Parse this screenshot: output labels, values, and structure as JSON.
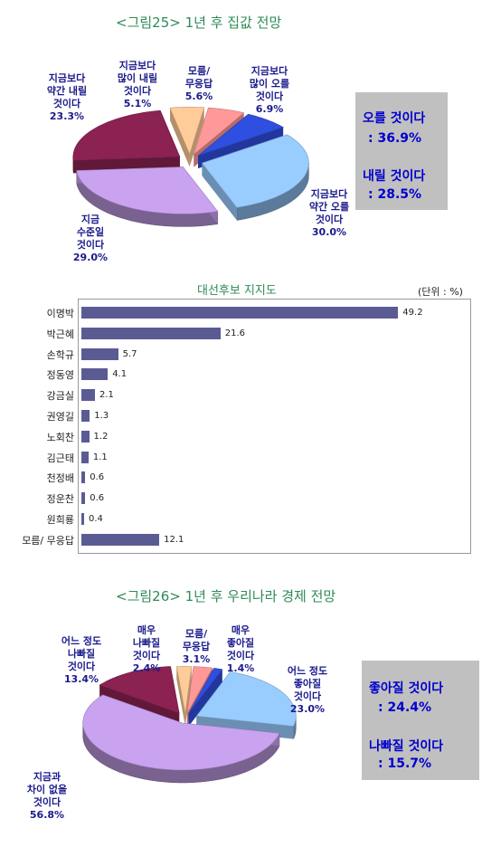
{
  "chart_data": [
    {
      "type": "pie",
      "title": "<그림25> 1년 후 집값 전망",
      "slices": [
        {
          "label": "지금보다 많이 오를 것이다",
          "value": 6.9,
          "color": "#2f4fe0"
        },
        {
          "label": "지금보다 약간 오를 것이다",
          "value": 30.0,
          "color": "#99ccff"
        },
        {
          "label": "지금 수준일 것이다",
          "value": 29.0,
          "color": "#c9a2f0"
        },
        {
          "label": "지금보다 약간 내릴 것이다",
          "value": 23.3,
          "color": "#8b2252"
        },
        {
          "label": "지금보다 많이 내릴 것이다",
          "value": 5.1,
          "color": "#ffcc99"
        },
        {
          "label": "모름/무응답",
          "value": 5.6,
          "color": "#ff9999"
        }
      ]
    },
    {
      "type": "bar",
      "title": "대선후보 지지도",
      "unit": "(단위 : %)",
      "categories": [
        "이명박",
        "박근혜",
        "손학규",
        "정동영",
        "강금실",
        "권영길",
        "노회찬",
        "김근태",
        "천정배",
        "정운찬",
        "원희룡",
        "모름/ 무응답"
      ],
      "values": [
        49.2,
        21.6,
        5.7,
        4.1,
        2.1,
        1.3,
        1.2,
        1.1,
        0.6,
        0.6,
        0.4,
        12.1
      ],
      "xlim": [
        0,
        50
      ]
    },
    {
      "type": "pie",
      "title": "<그림26> 1년 후 우리나라 경제 전망",
      "slices": [
        {
          "label": "매우 나빠질 것이다",
          "value": 2.4,
          "color": "#ffcc99"
        },
        {
          "label": "모름/무응답",
          "value": 3.1,
          "color": "#ff9999"
        },
        {
          "label": "매우 좋아질 것이다",
          "value": 1.4,
          "color": "#2f4fe0"
        },
        {
          "label": "어느 정도 좋아질 것이다",
          "value": 23.0,
          "color": "#99ccff"
        },
        {
          "label": "지금과 차이 없을 것이다",
          "value": 56.8,
          "color": "#c9a2f0"
        },
        {
          "label": "어느 정도 나빠질 것이다",
          "value": 13.4,
          "color": "#8b2252"
        }
      ]
    }
  ],
  "labels1": {
    "many_down": "지금보다\n많이 내릴\n것이다\n5.1%",
    "noresp": "모름/\n무응답\n5.6%",
    "many_up": "지금보다\n많이 오를\n것이다\n6.9%",
    "bit_down": "지금보다\n약간 내릴\n것이다\n23.3%",
    "bit_up": "지금보다\n약간 오를\n것이다\n30.0%",
    "same": "지금\n수준일\n것이다\n29.0%"
  },
  "summary1": {
    "line1": "오를 것이다",
    "line2": ":  36.9%",
    "line3": "내릴 것이다",
    "line4": ":  28.5%"
  },
  "labels2": {
    "some_bad": "어느 정도\n나빠질\n것이다\n13.4%",
    "very_bad": "매우\n나빠질\n것이다\n2.4%",
    "noresp": "모름/\n무응답\n3.1%",
    "very_good": "매우\n좋아질\n것이다\n1.4%",
    "some_good": "어느 정도\n좋아질\n것이다\n23.0%",
    "same": "지금과\n차이 없을\n것이다\n56.8%"
  },
  "summary2": {
    "line1": "좋아질 것이다",
    "line2": ":  24.4%",
    "line3": "나빠질 것이다",
    "line4": ":  15.7%"
  }
}
